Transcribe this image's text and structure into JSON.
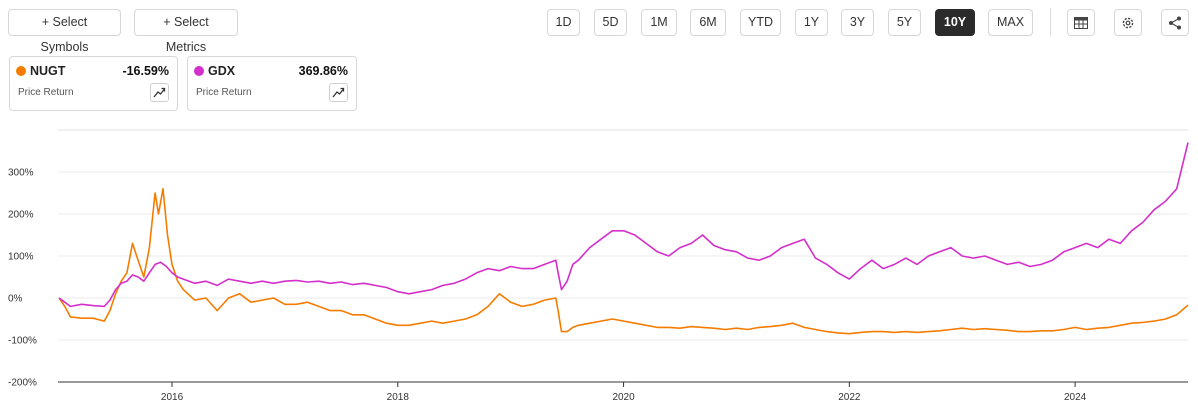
{
  "toolbar": {
    "select_symbols": "+ Select Symbols",
    "select_metrics": "+ Select Metrics",
    "ranges": [
      "1D",
      "5D",
      "1M",
      "6M",
      "YTD",
      "1Y",
      "3Y",
      "5Y",
      "10Y",
      "MAX"
    ],
    "active_range": "10Y",
    "icons": [
      "table-icon",
      "settings-gear-icon",
      "share-icon"
    ]
  },
  "legend_cards": [
    {
      "symbol": "NUGT",
      "value": "-16.59%",
      "metric": "Price Return",
      "color": "#f57c00"
    },
    {
      "symbol": "GDX",
      "value": "369.86%",
      "metric": "Price Return",
      "color": "#d42fcb"
    }
  ],
  "chart_data": {
    "type": "line",
    "title": "",
    "xlabel": "",
    "ylabel": "",
    "x_range": [
      2014.99,
      2025.0
    ],
    "ylim": [
      -200,
      400
    ],
    "y_ticks": [
      -200,
      -100,
      0,
      100,
      200,
      300
    ],
    "y_tick_labels": [
      "-200%",
      "-100%",
      "0%",
      "100%",
      "200%",
      "300%"
    ],
    "x_ticks": [
      2016,
      2018,
      2020,
      2022,
      2024
    ],
    "x_tick_labels": [
      "2016",
      "2018",
      "2020",
      "2022",
      "2024"
    ],
    "grid": "horizontal",
    "series": [
      {
        "name": "NUGT",
        "color": "#f57c00",
        "points": [
          [
            2015.0,
            0
          ],
          [
            2015.05,
            -20
          ],
          [
            2015.1,
            -45
          ],
          [
            2015.2,
            -48
          ],
          [
            2015.3,
            -48
          ],
          [
            2015.4,
            -55
          ],
          [
            2015.45,
            -30
          ],
          [
            2015.5,
            10
          ],
          [
            2015.55,
            40
          ],
          [
            2015.6,
            60
          ],
          [
            2015.65,
            130
          ],
          [
            2015.7,
            90
          ],
          [
            2015.75,
            50
          ],
          [
            2015.8,
            120
          ],
          [
            2015.85,
            250
          ],
          [
            2015.88,
            200
          ],
          [
            2015.92,
            260
          ],
          [
            2015.96,
            150
          ],
          [
            2016.0,
            80
          ],
          [
            2016.05,
            40
          ],
          [
            2016.1,
            20
          ],
          [
            2016.2,
            -5
          ],
          [
            2016.3,
            0
          ],
          [
            2016.4,
            -30
          ],
          [
            2016.5,
            0
          ],
          [
            2016.6,
            10
          ],
          [
            2016.7,
            -10
          ],
          [
            2016.8,
            -5
          ],
          [
            2016.9,
            0
          ],
          [
            2017.0,
            -15
          ],
          [
            2017.1,
            -15
          ],
          [
            2017.2,
            -10
          ],
          [
            2017.3,
            -20
          ],
          [
            2017.4,
            -30
          ],
          [
            2017.5,
            -30
          ],
          [
            2017.6,
            -40
          ],
          [
            2017.7,
            -40
          ],
          [
            2017.8,
            -50
          ],
          [
            2017.9,
            -60
          ],
          [
            2018.0,
            -65
          ],
          [
            2018.1,
            -65
          ],
          [
            2018.2,
            -60
          ],
          [
            2018.3,
            -55
          ],
          [
            2018.4,
            -60
          ],
          [
            2018.5,
            -55
          ],
          [
            2018.6,
            -50
          ],
          [
            2018.7,
            -40
          ],
          [
            2018.8,
            -20
          ],
          [
            2018.9,
            10
          ],
          [
            2019.0,
            -10
          ],
          [
            2019.1,
            -20
          ],
          [
            2019.2,
            -15
          ],
          [
            2019.3,
            -5
          ],
          [
            2019.4,
            0
          ],
          [
            2019.42,
            -30
          ],
          [
            2019.45,
            -80
          ],
          [
            2019.5,
            -80
          ],
          [
            2019.55,
            -70
          ],
          [
            2019.6,
            -65
          ],
          [
            2019.7,
            -60
          ],
          [
            2019.8,
            -55
          ],
          [
            2019.9,
            -50
          ],
          [
            2020.0,
            -55
          ],
          [
            2020.1,
            -60
          ],
          [
            2020.2,
            -65
          ],
          [
            2020.3,
            -70
          ],
          [
            2020.4,
            -70
          ],
          [
            2020.5,
            -72
          ],
          [
            2020.6,
            -68
          ],
          [
            2020.7,
            -70
          ],
          [
            2020.8,
            -72
          ],
          [
            2020.9,
            -75
          ],
          [
            2021.0,
            -72
          ],
          [
            2021.1,
            -75
          ],
          [
            2021.2,
            -70
          ],
          [
            2021.3,
            -68
          ],
          [
            2021.4,
            -65
          ],
          [
            2021.5,
            -60
          ],
          [
            2021.6,
            -70
          ],
          [
            2021.7,
            -75
          ],
          [
            2021.8,
            -80
          ],
          [
            2021.9,
            -83
          ],
          [
            2022.0,
            -85
          ],
          [
            2022.1,
            -82
          ],
          [
            2022.2,
            -80
          ],
          [
            2022.3,
            -80
          ],
          [
            2022.4,
            -82
          ],
          [
            2022.5,
            -80
          ],
          [
            2022.6,
            -82
          ],
          [
            2022.7,
            -80
          ],
          [
            2022.8,
            -78
          ],
          [
            2022.9,
            -75
          ],
          [
            2023.0,
            -72
          ],
          [
            2023.1,
            -75
          ],
          [
            2023.2,
            -73
          ],
          [
            2023.3,
            -75
          ],
          [
            2023.4,
            -77
          ],
          [
            2023.5,
            -80
          ],
          [
            2023.6,
            -80
          ],
          [
            2023.7,
            -78
          ],
          [
            2023.8,
            -78
          ],
          [
            2023.9,
            -75
          ],
          [
            2024.0,
            -70
          ],
          [
            2024.1,
            -75
          ],
          [
            2024.2,
            -72
          ],
          [
            2024.3,
            -70
          ],
          [
            2024.4,
            -65
          ],
          [
            2024.5,
            -60
          ],
          [
            2024.6,
            -58
          ],
          [
            2024.7,
            -55
          ],
          [
            2024.8,
            -50
          ],
          [
            2024.9,
            -40
          ],
          [
            2025.0,
            -17
          ]
        ]
      },
      {
        "name": "GDX",
        "color": "#d42fcb",
        "points": [
          [
            2015.0,
            0
          ],
          [
            2015.05,
            -10
          ],
          [
            2015.1,
            -20
          ],
          [
            2015.2,
            -15
          ],
          [
            2015.3,
            -18
          ],
          [
            2015.4,
            -20
          ],
          [
            2015.45,
            -5
          ],
          [
            2015.5,
            20
          ],
          [
            2015.55,
            35
          ],
          [
            2015.6,
            40
          ],
          [
            2015.65,
            55
          ],
          [
            2015.7,
            50
          ],
          [
            2015.75,
            40
          ],
          [
            2015.8,
            60
          ],
          [
            2015.85,
            80
          ],
          [
            2015.9,
            85
          ],
          [
            2015.95,
            75
          ],
          [
            2016.0,
            60
          ],
          [
            2016.05,
            50
          ],
          [
            2016.1,
            45
          ],
          [
            2016.2,
            35
          ],
          [
            2016.3,
            40
          ],
          [
            2016.4,
            30
          ],
          [
            2016.5,
            45
          ],
          [
            2016.6,
            40
          ],
          [
            2016.7,
            35
          ],
          [
            2016.8,
            40
          ],
          [
            2016.9,
            35
          ],
          [
            2017.0,
            40
          ],
          [
            2017.1,
            42
          ],
          [
            2017.2,
            38
          ],
          [
            2017.3,
            40
          ],
          [
            2017.4,
            35
          ],
          [
            2017.5,
            38
          ],
          [
            2017.6,
            32
          ],
          [
            2017.7,
            35
          ],
          [
            2017.8,
            30
          ],
          [
            2017.9,
            25
          ],
          [
            2018.0,
            15
          ],
          [
            2018.1,
            10
          ],
          [
            2018.2,
            15
          ],
          [
            2018.3,
            20
          ],
          [
            2018.4,
            30
          ],
          [
            2018.5,
            35
          ],
          [
            2018.6,
            45
          ],
          [
            2018.7,
            60
          ],
          [
            2018.8,
            70
          ],
          [
            2018.9,
            65
          ],
          [
            2019.0,
            75
          ],
          [
            2019.1,
            70
          ],
          [
            2019.2,
            70
          ],
          [
            2019.3,
            80
          ],
          [
            2019.4,
            90
          ],
          [
            2019.42,
            60
          ],
          [
            2019.45,
            20
          ],
          [
            2019.5,
            40
          ],
          [
            2019.55,
            80
          ],
          [
            2019.6,
            90
          ],
          [
            2019.7,
            120
          ],
          [
            2019.8,
            140
          ],
          [
            2019.9,
            160
          ],
          [
            2020.0,
            160
          ],
          [
            2020.1,
            150
          ],
          [
            2020.2,
            130
          ],
          [
            2020.3,
            110
          ],
          [
            2020.4,
            100
          ],
          [
            2020.5,
            120
          ],
          [
            2020.6,
            130
          ],
          [
            2020.7,
            150
          ],
          [
            2020.8,
            125
          ],
          [
            2020.9,
            115
          ],
          [
            2021.0,
            110
          ],
          [
            2021.1,
            95
          ],
          [
            2021.2,
            90
          ],
          [
            2021.3,
            100
          ],
          [
            2021.4,
            120
          ],
          [
            2021.5,
            130
          ],
          [
            2021.6,
            140
          ],
          [
            2021.7,
            95
          ],
          [
            2021.8,
            80
          ],
          [
            2021.9,
            60
          ],
          [
            2022.0,
            45
          ],
          [
            2022.1,
            70
          ],
          [
            2022.2,
            90
          ],
          [
            2022.3,
            70
          ],
          [
            2022.4,
            80
          ],
          [
            2022.5,
            95
          ],
          [
            2022.6,
            80
          ],
          [
            2022.7,
            100
          ],
          [
            2022.8,
            110
          ],
          [
            2022.9,
            120
          ],
          [
            2023.0,
            100
          ],
          [
            2023.1,
            95
          ],
          [
            2023.2,
            100
          ],
          [
            2023.3,
            90
          ],
          [
            2023.4,
            80
          ],
          [
            2023.5,
            85
          ],
          [
            2023.6,
            75
          ],
          [
            2023.7,
            80
          ],
          [
            2023.8,
            90
          ],
          [
            2023.9,
            110
          ],
          [
            2024.0,
            120
          ],
          [
            2024.1,
            130
          ],
          [
            2024.2,
            120
          ],
          [
            2024.3,
            140
          ],
          [
            2024.4,
            130
          ],
          [
            2024.5,
            160
          ],
          [
            2024.6,
            180
          ],
          [
            2024.7,
            210
          ],
          [
            2024.8,
            230
          ],
          [
            2024.9,
            260
          ],
          [
            2025.0,
            370
          ]
        ]
      }
    ]
  }
}
